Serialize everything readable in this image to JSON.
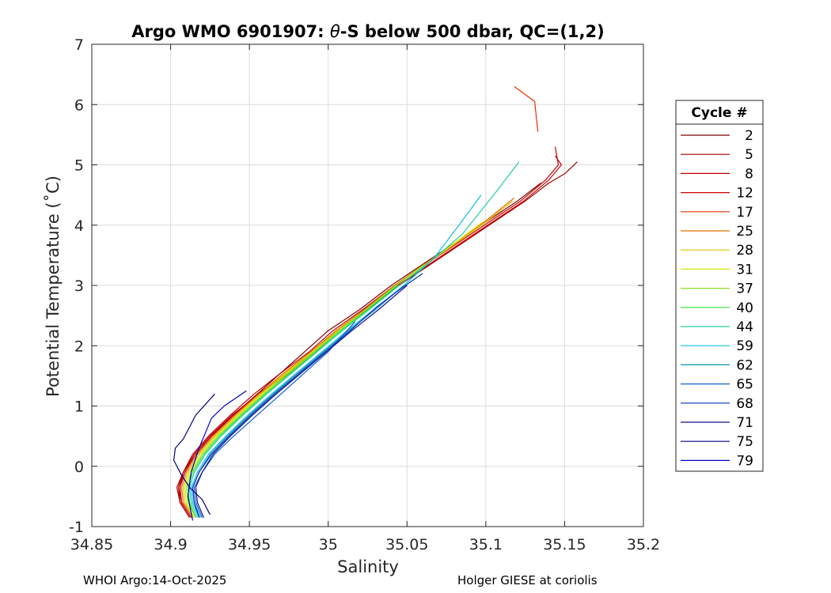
{
  "chart_data": {
    "type": "line",
    "title_prefix": "Argo WMO 6901907: ",
    "title_symbol": "θ",
    "title_suffix": "-S below 500 dbar,  QC=(1,2)",
    "xlabel": "Salinity",
    "ylabel": "Potential Temperature (˚C)",
    "xlim": [
      34.85,
      35.2
    ],
    "ylim": [
      -1,
      7
    ],
    "xticks": [
      "34.85",
      "34.9",
      "34.95",
      "35",
      "35.05",
      "35.1",
      "35.15",
      "35.2"
    ],
    "yticks": [
      "-1",
      "0",
      "1",
      "2",
      "3",
      "4",
      "5",
      "6",
      "7"
    ],
    "grid": true,
    "legend_title": "Cycle #",
    "legend_position": "right-outside",
    "series": [
      {
        "name": "2",
        "color": "#800000",
        "x": [
          34.912,
          34.906,
          34.905,
          34.908,
          34.915,
          34.925,
          34.94,
          34.955,
          34.97,
          34.985,
          35.0,
          35.02,
          35.04,
          35.06,
          35.08,
          35.1,
          35.12,
          35.135
        ],
        "y": [
          -0.85,
          -0.6,
          -0.35,
          -0.1,
          0.2,
          0.5,
          0.85,
          1.2,
          1.55,
          1.9,
          2.25,
          2.6,
          3.0,
          3.35,
          3.7,
          4.05,
          4.4,
          4.7
        ]
      },
      {
        "name": "5",
        "color": "#a00000",
        "x": [
          34.913,
          34.907,
          34.906,
          34.909,
          34.916,
          34.926,
          34.94,
          34.955,
          34.975,
          34.99,
          35.005,
          35.025,
          35.045,
          35.065,
          35.085,
          35.105,
          35.125,
          35.14,
          35.15,
          35.158
        ],
        "y": [
          -0.85,
          -0.6,
          -0.35,
          -0.1,
          0.2,
          0.5,
          0.85,
          1.2,
          1.55,
          1.9,
          2.25,
          2.6,
          3.0,
          3.35,
          3.7,
          4.05,
          4.4,
          4.7,
          4.85,
          5.05
        ]
      },
      {
        "name": "8",
        "color": "#c00000",
        "x": [
          34.912,
          34.906,
          34.904,
          34.908,
          34.914,
          34.924,
          34.938,
          34.953,
          34.97,
          34.988,
          35.003,
          35.022,
          35.042,
          35.062,
          35.082,
          35.102,
          35.122,
          35.138,
          35.146,
          35.144
        ],
        "y": [
          -0.85,
          -0.6,
          -0.35,
          -0.1,
          0.2,
          0.5,
          0.85,
          1.2,
          1.55,
          1.9,
          2.25,
          2.6,
          3.0,
          3.35,
          3.7,
          4.05,
          4.4,
          4.75,
          5.0,
          5.3
        ]
      },
      {
        "name": "12",
        "color": "#d00000",
        "x": [
          34.913,
          34.907,
          34.905,
          34.909,
          34.915,
          34.925,
          34.939,
          34.956,
          34.976,
          34.992,
          35.006,
          35.024,
          35.044,
          35.064,
          35.084,
          35.104,
          35.124,
          35.14,
          35.148,
          35.144
        ],
        "y": [
          -0.85,
          -0.6,
          -0.35,
          -0.1,
          0.2,
          0.5,
          0.85,
          1.2,
          1.55,
          1.9,
          2.25,
          2.6,
          3.0,
          3.35,
          3.7,
          4.05,
          4.4,
          4.75,
          5.0,
          5.15
        ]
      },
      {
        "name": "17",
        "color": "#e83000",
        "x": [
          35.133,
          35.131,
          35.118
        ],
        "y": [
          5.55,
          6.05,
          6.3
        ]
      },
      {
        "name": "25",
        "color": "#e07000",
        "x": [
          34.914,
          34.908,
          34.907,
          34.91,
          34.917,
          34.927,
          34.941,
          34.956,
          34.972,
          34.989,
          35.005,
          35.023,
          35.042,
          35.061,
          35.08,
          35.099,
          35.118
        ],
        "y": [
          -0.85,
          -0.6,
          -0.35,
          -0.1,
          0.2,
          0.5,
          0.85,
          1.2,
          1.55,
          1.9,
          2.25,
          2.6,
          3.0,
          3.35,
          3.7,
          4.05,
          4.45
        ]
      },
      {
        "name": "28",
        "color": "#e0c000",
        "x": [
          34.915,
          34.909,
          34.908,
          34.911,
          34.918,
          34.928,
          34.942,
          34.957,
          34.973,
          34.99,
          35.006,
          35.024,
          35.043,
          35.062,
          35.081,
          35.1,
          35.117
        ],
        "y": [
          -0.85,
          -0.6,
          -0.35,
          -0.1,
          0.2,
          0.5,
          0.85,
          1.2,
          1.55,
          1.9,
          2.25,
          2.6,
          3.0,
          3.35,
          3.7,
          4.05,
          4.4
        ]
      },
      {
        "name": "31",
        "color": "#d8e800",
        "x": [
          34.915,
          34.91,
          34.909,
          34.912,
          34.919,
          34.929,
          34.943,
          34.958,
          34.974,
          34.99,
          35.006,
          35.024,
          35.043,
          35.062,
          35.08,
          35.098
        ],
        "y": [
          -0.85,
          -0.6,
          -0.35,
          -0.1,
          0.2,
          0.5,
          0.85,
          1.2,
          1.55,
          1.9,
          2.25,
          2.6,
          3.0,
          3.35,
          3.7,
          4.05
        ]
      },
      {
        "name": "37",
        "color": "#90e020",
        "x": [
          34.916,
          34.911,
          34.91,
          34.913,
          34.92,
          34.93,
          34.944,
          34.959,
          34.975,
          34.991,
          35.007,
          35.024,
          35.043,
          35.061
        ],
        "y": [
          -0.85,
          -0.6,
          -0.35,
          -0.1,
          0.2,
          0.5,
          0.85,
          1.2,
          1.55,
          1.9,
          2.25,
          2.6,
          3.0,
          3.35
        ]
      },
      {
        "name": "40",
        "color": "#30e030",
        "x": [
          34.916,
          34.912,
          34.911,
          34.914,
          34.921,
          34.931,
          34.945,
          34.96,
          34.976,
          34.992,
          35.008,
          35.025,
          35.044
        ],
        "y": [
          -0.85,
          -0.6,
          -0.35,
          -0.1,
          0.2,
          0.5,
          0.85,
          1.2,
          1.55,
          1.9,
          2.25,
          2.6,
          3.0
        ]
      },
      {
        "name": "44",
        "color": "#20d0a0",
        "x": [
          34.917,
          34.913,
          34.912,
          34.915,
          34.922,
          34.932,
          34.946,
          34.961,
          34.977,
          34.993,
          35.009,
          35.026,
          35.045,
          35.065,
          35.085,
          35.105,
          35.121
        ],
        "y": [
          -0.85,
          -0.6,
          -0.35,
          -0.1,
          0.2,
          0.5,
          0.85,
          1.2,
          1.55,
          1.9,
          2.25,
          2.6,
          3.0,
          3.4,
          3.85,
          4.5,
          5.05
        ]
      },
      {
        "name": "59",
        "color": "#10c0e0",
        "x": [
          34.918,
          34.914,
          34.913,
          34.917,
          34.924,
          34.935,
          34.949,
          34.964,
          34.98,
          34.996,
          35.012,
          35.029,
          35.048,
          35.067,
          35.083,
          35.097
        ],
        "y": [
          -0.85,
          -0.6,
          -0.35,
          -0.1,
          0.2,
          0.5,
          0.85,
          1.2,
          1.55,
          1.9,
          2.25,
          2.6,
          3.0,
          3.45,
          4.0,
          4.5
        ]
      },
      {
        "name": "62",
        "color": "#1090b0",
        "x": [
          34.919,
          34.915,
          34.914,
          34.918,
          34.925,
          34.936,
          34.95,
          34.965,
          34.981,
          34.997,
          35.013,
          35.03,
          35.048
        ],
        "y": [
          -0.85,
          -0.6,
          -0.35,
          -0.1,
          0.2,
          0.5,
          0.85,
          1.2,
          1.55,
          1.9,
          2.25,
          2.6,
          3.0
        ]
      },
      {
        "name": "65",
        "color": "#1060d0",
        "x": [
          34.92,
          34.916,
          34.915,
          34.92,
          34.928,
          34.94,
          34.955,
          34.97,
          34.985,
          35.0,
          35.017
        ],
        "y": [
          -0.85,
          -0.6,
          -0.35,
          -0.1,
          0.2,
          0.5,
          0.85,
          1.2,
          1.55,
          1.9,
          2.4
        ]
      },
      {
        "name": "68",
        "color": "#0030c0",
        "x": [
          34.918,
          34.915,
          34.914,
          34.918,
          34.926,
          34.937,
          34.951,
          34.966,
          34.982,
          34.998,
          35.014,
          35.031,
          35.049,
          35.06
        ],
        "y": [
          -0.85,
          -0.6,
          -0.35,
          -0.1,
          0.2,
          0.5,
          0.85,
          1.2,
          1.55,
          1.9,
          2.25,
          2.65,
          3.0,
          3.2
        ]
      },
      {
        "name": "71",
        "color": "#101090",
        "x": [
          34.921,
          34.917,
          34.916,
          34.92,
          34.927,
          34.938,
          34.952,
          34.967,
          34.983,
          34.999,
          35.015,
          35.032,
          35.05
        ],
        "y": [
          -0.85,
          -0.6,
          -0.35,
          -0.1,
          0.2,
          0.5,
          0.85,
          1.2,
          1.55,
          1.9,
          2.25,
          2.6,
          3.0
        ]
      },
      {
        "name": "75",
        "color": "#000080",
        "x": [
          34.925,
          34.92,
          34.912,
          34.907,
          34.902,
          34.903,
          34.908,
          34.916,
          34.928
        ],
        "y": [
          -0.8,
          -0.55,
          -0.35,
          -0.15,
          0.1,
          0.3,
          0.45,
          0.85,
          1.2
        ]
      },
      {
        "name": "79",
        "color": "#0000c0",
        "x": [
          34.914,
          34.911,
          34.913,
          34.918,
          34.922,
          34.926,
          34.934,
          34.948
        ],
        "y": [
          -0.9,
          -0.5,
          -0.1,
          0.3,
          0.55,
          0.8,
          1.0,
          1.25
        ]
      }
    ]
  },
  "footer": {
    "left": "WHOI Argo:14-Oct-2025",
    "right": "Holger GIESE at coriolis"
  }
}
